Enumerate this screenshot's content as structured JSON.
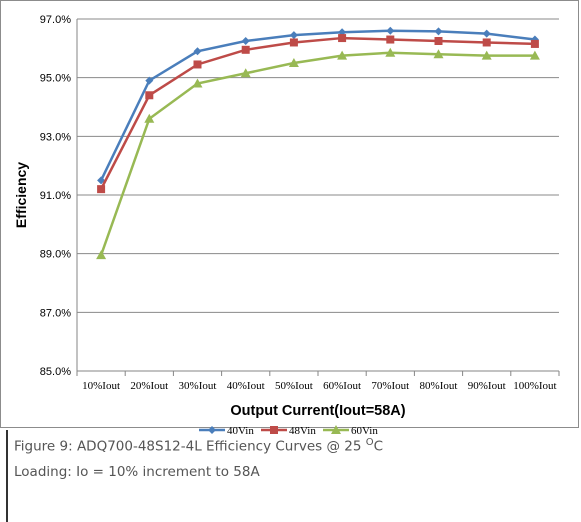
{
  "chart_data": {
    "type": "line",
    "xlabel": "Output Current(Iout=58A)",
    "ylabel": "Efficiency",
    "categories": [
      "10%Iout",
      "20%Iout",
      "30%Iout",
      "40%Iout",
      "50%Iout",
      "60%Iout",
      "70%Iout",
      "80%Iout",
      "90%Iout",
      "100%Iout"
    ],
    "ylim": [
      85.0,
      97.0
    ],
    "yticks": [
      85.0,
      87.0,
      89.0,
      91.0,
      93.0,
      95.0,
      97.0
    ],
    "ytick_labels": [
      "85.0%",
      "87.0%",
      "89.0%",
      "91.0%",
      "93.0%",
      "95.0%",
      "97.0%"
    ],
    "grid": "horizontal",
    "legend_position": "bottom",
    "series": [
      {
        "name": "40Vin",
        "color": "#4a7ebb",
        "marker": "diamond",
        "values": [
          91.5,
          94.9,
          95.9,
          96.25,
          96.45,
          96.55,
          96.6,
          96.58,
          96.5,
          96.3
        ]
      },
      {
        "name": "48Vin",
        "color": "#be4b48",
        "marker": "square",
        "values": [
          91.2,
          94.4,
          95.45,
          95.95,
          96.2,
          96.35,
          96.3,
          96.25,
          96.2,
          96.15
        ]
      },
      {
        "name": "60Vin",
        "color": "#98b954",
        "marker": "triangle",
        "values": [
          88.95,
          93.6,
          94.8,
          95.15,
          95.5,
          95.75,
          95.85,
          95.8,
          95.75,
          95.75
        ]
      }
    ]
  },
  "caption": {
    "line1_prefix": "Figure 9: ADQ700-48S12-4L Efficiency Curves @ 25 ",
    "line1_sup": "O",
    "line1_suffix": "C",
    "line2": "Loading:  Io = 10% increment to 58A"
  }
}
